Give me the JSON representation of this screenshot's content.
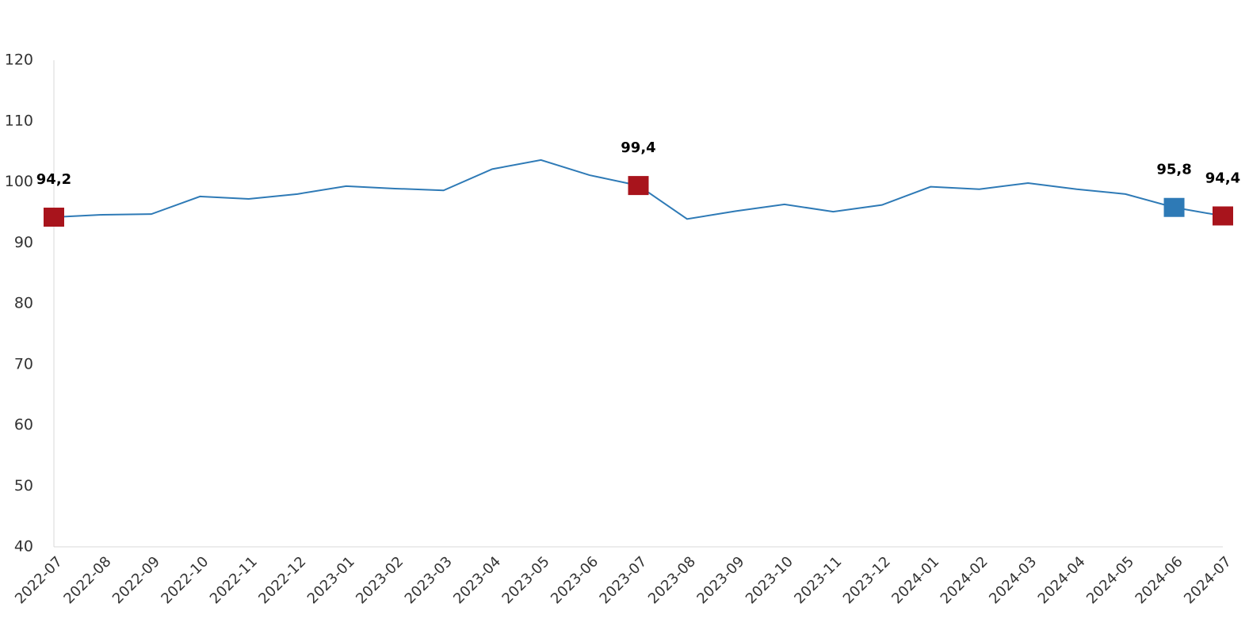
{
  "chart_data": {
    "type": "line",
    "x": [
      "2022-07",
      "2022-08",
      "2022-09",
      "2022-10",
      "2022-11",
      "2022-12",
      "2023-01",
      "2023-02",
      "2023-03",
      "2023-04",
      "2023-05",
      "2023-06",
      "2023-07",
      "2023-08",
      "2023-09",
      "2023-10",
      "2023-11",
      "2023-12",
      "2024-01",
      "2024-02",
      "2024-03",
      "2024-04",
      "2024-05",
      "2024-06",
      "2024-07"
    ],
    "series": [
      {
        "color": "#2e7ab6",
        "values": [
          94.2,
          94.6,
          94.7,
          97.6,
          97.2,
          98.0,
          99.3,
          98.9,
          98.6,
          102.1,
          103.6,
          101.1,
          99.4,
          93.9,
          95.2,
          96.3,
          95.1,
          96.2,
          99.2,
          98.8,
          99.8,
          98.8,
          98.0,
          95.8,
          94.4
        ],
        "value_labels": [
          "94,2",
          null,
          null,
          null,
          null,
          null,
          null,
          null,
          null,
          null,
          null,
          null,
          "99,4",
          null,
          null,
          null,
          null,
          null,
          null,
          null,
          null,
          null,
          null,
          "95,8",
          "94,4"
        ],
        "marker_colors": [
          "#a8141c",
          null,
          null,
          null,
          null,
          null,
          null,
          null,
          null,
          null,
          null,
          null,
          "#a8141c",
          null,
          null,
          null,
          null,
          null,
          null,
          null,
          null,
          null,
          null,
          "#2e7ab6",
          "#a8141c"
        ]
      }
    ],
    "ylim": [
      40,
      120
    ],
    "yticks": [
      40,
      50,
      60,
      70,
      80,
      90,
      100,
      110,
      120
    ],
    "grid": false
  }
}
